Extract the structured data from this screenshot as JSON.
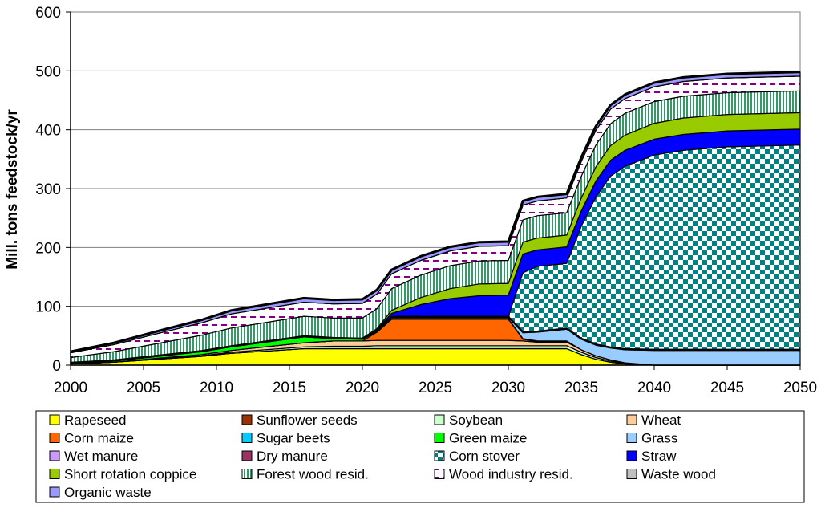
{
  "chart_data": {
    "type": "area",
    "stacked": true,
    "title": "",
    "xlabel": "",
    "ylabel": "Mill. tons feedstock/yr",
    "xlim": [
      2000,
      2050
    ],
    "ylim": [
      0,
      600
    ],
    "x_ticks": [
      "2000",
      "2005",
      "2010",
      "2015",
      "2020",
      "2025",
      "2030",
      "2035",
      "2040",
      "2045",
      "2050"
    ],
    "y_ticks": [
      "0",
      "100",
      "200",
      "300",
      "400",
      "500",
      "600"
    ],
    "grid": "horizontal",
    "legend": "bottom",
    "x": [
      2000,
      2003,
      2006,
      2009,
      2011,
      2016,
      2018,
      2020,
      2021,
      2022,
      2024,
      2026,
      2028,
      2030,
      2031,
      2032,
      2034,
      2035,
      2036,
      2037,
      2038,
      2040,
      2042,
      2045,
      2050
    ],
    "series": [
      {
        "name": "Rapeseed",
        "color": "#FFFF00",
        "pattern": "solid",
        "values": [
          2,
          5,
          10,
          15,
          20,
          28,
          28,
          28,
          28,
          28,
          28,
          28,
          28,
          28,
          28,
          28,
          28,
          18,
          10,
          5,
          2,
          0,
          0,
          0,
          0
        ]
      },
      {
        "name": "Sunflower seeds",
        "color": "#993300",
        "pattern": "solid",
        "values": [
          0,
          0,
          0,
          0,
          0,
          0,
          0,
          0,
          0,
          0,
          0,
          0,
          0,
          0,
          0,
          0,
          0,
          0,
          0,
          0,
          0,
          0,
          0,
          0,
          0
        ]
      },
      {
        "name": "Soybean",
        "color": "#CCFFCC",
        "pattern": "solid",
        "values": [
          0,
          0,
          1,
          1,
          2,
          3,
          4,
          4,
          5,
          5,
          5,
          5,
          5,
          5,
          5,
          5,
          5,
          4,
          3,
          2,
          1,
          0,
          0,
          0,
          0
        ]
      },
      {
        "name": "Wheat",
        "color": "#FFCC99",
        "pattern": "solid",
        "values": [
          0,
          0,
          1,
          2,
          3,
          7,
          9,
          9,
          9,
          9,
          9,
          9,
          9,
          9,
          8,
          6,
          6,
          4,
          3,
          2,
          1,
          0,
          0,
          0,
          0
        ]
      },
      {
        "name": "Corn maize",
        "color": "#FF6600",
        "pattern": "solid",
        "values": [
          0,
          0,
          0,
          0,
          0,
          0,
          0,
          0,
          14,
          36,
          36,
          36,
          36,
          36,
          3,
          1,
          1,
          0,
          0,
          0,
          0,
          0,
          0,
          0,
          0
        ]
      },
      {
        "name": "Sugar beets",
        "color": "#00CCFF",
        "pattern": "solid",
        "values": [
          0,
          0,
          0,
          0,
          0,
          0,
          0,
          0,
          0,
          0,
          0,
          0,
          0,
          0,
          0,
          0,
          0,
          0,
          0,
          0,
          0,
          0,
          0,
          0,
          0
        ]
      },
      {
        "name": "Green maize",
        "color": "#00FF00",
        "pattern": "solid",
        "values": [
          1,
          2,
          3,
          5,
          6,
          10,
          4,
          3,
          1,
          1,
          1,
          1,
          1,
          1,
          1,
          1,
          1,
          0,
          0,
          0,
          0,
          0,
          0,
          0,
          0
        ]
      },
      {
        "name": "Grass",
        "color": "#99CCFF",
        "pattern": "solid",
        "values": [
          0,
          0,
          0,
          0,
          0,
          0,
          0,
          0,
          2,
          2,
          2,
          2,
          2,
          2,
          10,
          15,
          20,
          18,
          18,
          20,
          22,
          25,
          25,
          25,
          25
        ]
      },
      {
        "name": "Wet manure",
        "color": "#CC99FF",
        "pattern": "solid",
        "values": [
          1,
          1,
          1,
          1,
          1,
          1,
          1,
          1,
          1,
          1,
          1,
          1,
          1,
          1,
          1,
          1,
          1,
          1,
          1,
          1,
          1,
          1,
          1,
          1,
          1
        ]
      },
      {
        "name": "Dry manure",
        "color": "#993366",
        "pattern": "solid",
        "values": [
          1,
          1,
          1,
          1,
          1,
          1,
          1,
          1,
          1,
          1,
          1,
          1,
          1,
          1,
          1,
          1,
          1,
          1,
          1,
          1,
          1,
          1,
          1,
          1,
          1
        ]
      },
      {
        "name": "Corn stover",
        "color": "#008080",
        "pattern": "checker",
        "values": [
          0,
          0,
          0,
          0,
          0,
          0,
          0,
          0,
          0,
          0,
          0,
          0,
          0,
          0,
          100,
          110,
          110,
          190,
          250,
          290,
          310,
          330,
          338,
          344,
          347
        ]
      },
      {
        "name": "Straw",
        "color": "#0000FF",
        "pattern": "solid",
        "values": [
          0,
          0,
          0,
          0,
          0,
          0,
          0,
          0,
          0,
          5,
          20,
          30,
          35,
          36,
          32,
          28,
          28,
          26,
          27,
          27,
          27,
          27,
          27,
          27,
          27
        ]
      },
      {
        "name": "Short rotation coppice",
        "color": "#99CC00",
        "pattern": "solid",
        "values": [
          0,
          0,
          0,
          0,
          0,
          0,
          0,
          0,
          1,
          5,
          12,
          17,
          20,
          20,
          20,
          20,
          20,
          22,
          24,
          25,
          26,
          27,
          28,
          28,
          28
        ]
      },
      {
        "name": "Forest wood resid.",
        "color": "#339966",
        "pattern": "vstripe",
        "values": [
          8,
          14,
          20,
          26,
          30,
          33,
          33,
          34,
          34,
          37,
          38,
          39,
          39,
          39,
          38,
          38,
          38,
          37,
          37,
          37,
          37,
          37,
          37,
          37,
          37
        ]
      },
      {
        "name": "Wood industry resid.",
        "color": "#800080",
        "pattern": "dash",
        "values": [
          8,
          12,
          17,
          21,
          24,
          24,
          24,
          25,
          25,
          25,
          25,
          25,
          25,
          25,
          25,
          25,
          25,
          25,
          25,
          25,
          25,
          25,
          25,
          25,
          25
        ]
      },
      {
        "name": "Waste wood",
        "color": "#C0C0C0",
        "pattern": "solid",
        "values": [
          0,
          0,
          0,
          0,
          0,
          0,
          0,
          0,
          0,
          0,
          0,
          0,
          0,
          0,
          0,
          0,
          0,
          0,
          0,
          0,
          0,
          0,
          0,
          0,
          0
        ]
      },
      {
        "name": "Organic waste",
        "color": "#9999FF",
        "pattern": "solid",
        "values": [
          2,
          3,
          4,
          5,
          6,
          7,
          7,
          7,
          7,
          7,
          7,
          7,
          7,
          7,
          7,
          7,
          7,
          7,
          7,
          7,
          7,
          7,
          7,
          7,
          7
        ]
      }
    ]
  }
}
